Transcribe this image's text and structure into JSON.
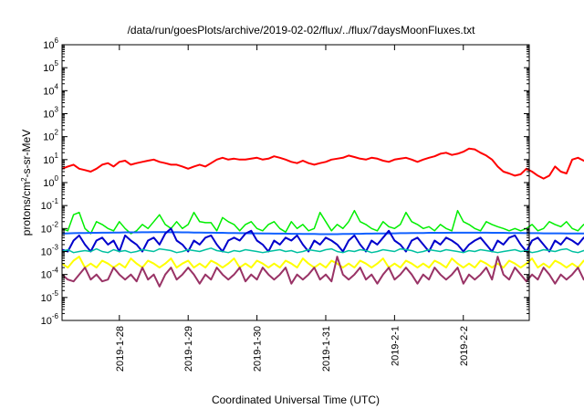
{
  "chart_data": {
    "type": "line",
    "title": "/data/run/goesPlots/archive/2019-02-02/flux/../flux/7daysMoonFluxes.txt",
    "xlabel": "Coordinated Universal Time (UTC)",
    "ylabel": "protons/cm²-s-sr-MeV",
    "yscale": "log",
    "ylim": [
      1e-06,
      1000000.0
    ],
    "y_ticks": [
      {
        "value": 1e-06,
        "base": "10",
        "exp": "-6"
      },
      {
        "value": 1e-05,
        "base": "10",
        "exp": "-5"
      },
      {
        "value": 0.0001,
        "base": "10",
        "exp": "-4"
      },
      {
        "value": 0.001,
        "base": "10",
        "exp": "-3"
      },
      {
        "value": 0.01,
        "base": "10",
        "exp": "-2"
      },
      {
        "value": 0.1,
        "base": "10",
        "exp": "-1"
      },
      {
        "value": 1,
        "base": "10",
        "exp": "0"
      },
      {
        "value": 10,
        "base": "10",
        "exp": "1"
      },
      {
        "value": 100,
        "base": "10",
        "exp": "2"
      },
      {
        "value": 1000,
        "base": "10",
        "exp": "3"
      },
      {
        "value": 10000,
        "base": "10",
        "exp": "4"
      },
      {
        "value": 100000,
        "base": "10",
        "exp": "5"
      },
      {
        "value": 1000000,
        "base": "10",
        "exp": "6"
      }
    ],
    "xlim": [
      "2019-01-27T04:00",
      "2019-02-02T23:00"
    ],
    "x_ticks": [
      {
        "label": "2019-1-28",
        "value": "2019-01-28T00:00"
      },
      {
        "label": "2019-1-29",
        "value": "2019-01-29T00:00"
      },
      {
        "label": "2019-1-30",
        "value": "2019-01-30T00:00"
      },
      {
        "label": "2019-1-31",
        "value": "2019-01-31T00:00"
      },
      {
        "label": "2019-2-1",
        "value": "2019-02-01T00:00"
      },
      {
        "label": "2019-2-2",
        "value": "2019-02-02T00:00"
      }
    ],
    "grid": false,
    "legend": "none",
    "x_interval_hours": 2,
    "series": [
      {
        "color": "#ff0000",
        "width": 2,
        "values": [
          4,
          5,
          6,
          4,
          3.5,
          3,
          4,
          6,
          7,
          5,
          8,
          9,
          6,
          7,
          8,
          9,
          10,
          8,
          7,
          6,
          6,
          5,
          4,
          5,
          6,
          5,
          7,
          10,
          12,
          10,
          11,
          10,
          10,
          11,
          12,
          10,
          11,
          14,
          12,
          10,
          8,
          7,
          9,
          7,
          6,
          7,
          8,
          10,
          11,
          12,
          15,
          13,
          11,
          10,
          12,
          11,
          9,
          8,
          10,
          11,
          12,
          10,
          8,
          10,
          12,
          14,
          18,
          20,
          16,
          18,
          22,
          30,
          28,
          20,
          15,
          10,
          5,
          3,
          2.5,
          2,
          2.3,
          4,
          3,
          2,
          1.5,
          2,
          5,
          3,
          2.5,
          10,
          12,
          9,
          8,
          11,
          12,
          8,
          6,
          4,
          1,
          0.6,
          0.8,
          0.45,
          0.6,
          0.8,
          1,
          1.5,
          3,
          10,
          12,
          14,
          15,
          20,
          22,
          11,
          8,
          5,
          3,
          2.5,
          2.5,
          2,
          1.5,
          1,
          1,
          0.9,
          1.5,
          1.5,
          2,
          10,
          8,
          20,
          14,
          10,
          8,
          7,
          6,
          5
        ]
      },
      {
        "color": "#00ee00",
        "width": 1.5,
        "values": [
          0.01,
          0.008,
          0.04,
          0.05,
          0.01,
          0.006,
          0.02,
          0.015,
          0.01,
          0.008,
          0.02,
          0.01,
          0.006,
          0.008,
          0.015,
          0.01,
          0.02,
          0.04,
          0.015,
          0.01,
          0.02,
          0.01,
          0.015,
          0.05,
          0.02,
          0.018,
          0.018,
          0.008,
          0.03,
          0.02,
          0.015,
          0.008,
          0.015,
          0.02,
          0.01,
          0.008,
          0.015,
          0.02,
          0.01,
          0.007,
          0.02,
          0.01,
          0.015,
          0.008,
          0.01,
          0.05,
          0.02,
          0.008,
          0.015,
          0.01,
          0.02,
          0.06,
          0.02,
          0.015,
          0.01,
          0.008,
          0.02,
          0.012,
          0.01,
          0.015,
          0.05,
          0.02,
          0.015,
          0.01,
          0.012,
          0.008,
          0.015,
          0.01,
          0.008,
          0.06,
          0.02,
          0.015,
          0.01,
          0.008,
          0.02,
          0.015,
          0.012,
          0.01,
          0.008,
          0.01,
          0.008,
          0.01,
          0.015,
          0.008,
          0.01,
          0.02,
          0.015,
          0.012,
          0.02,
          0.01,
          0.008,
          0.015,
          0.01,
          0.008,
          0.04,
          0.02,
          0.015,
          0.01,
          0.008,
          0.01,
          0.06,
          0.02,
          0.008,
          0.015,
          0.01,
          0.008,
          0.01,
          0.015,
          0.02,
          0.06,
          0.02,
          0.015,
          0.01,
          0.008,
          0.02,
          0.02,
          0.01,
          0.008,
          0.015,
          0.01,
          0.02,
          0.015,
          0.012,
          0.01,
          0.008,
          0.015,
          0.01,
          0.02,
          0.05,
          0.02,
          0.015,
          0.01,
          0.06,
          0.03,
          0.02,
          0.02
        ]
      },
      {
        "color": "#1060ff",
        "width": 2,
        "values": [
          0.006,
          0.0062,
          0.0063,
          0.0064,
          0.0064,
          0.0065,
          0.0065,
          0.0066,
          0.0066,
          0.0067,
          0.0067,
          0.0068,
          0.0068,
          0.0068,
          0.0069,
          0.0069,
          0.007,
          0.007,
          0.007,
          0.0069,
          0.0069,
          0.0068,
          0.0068,
          0.0067,
          0.0067,
          0.0066,
          0.0066,
          0.0065,
          0.0065,
          0.0064,
          0.0064,
          0.0063,
          0.0063,
          0.0062,
          0.0062,
          0.0061,
          0.0061,
          0.006,
          0.006,
          0.006,
          0.0059,
          0.0059,
          0.0058,
          0.0058,
          0.0058,
          0.0057,
          0.0057,
          0.0057,
          0.0057,
          0.0058,
          0.0058,
          0.0059,
          0.0059,
          0.006,
          0.006,
          0.0061,
          0.0061,
          0.0062,
          0.0062,
          0.0063,
          0.0063,
          0.0064,
          0.0064,
          0.0064,
          0.0065,
          0.0065,
          0.0065,
          0.0065,
          0.0066,
          0.0066,
          0.0066,
          0.0066,
          0.0066,
          0.0066,
          0.0066,
          0.0065,
          0.0065,
          0.0065,
          0.0064,
          0.0064,
          0.0064,
          0.0063,
          0.0063,
          0.0063,
          0.0062,
          0.0062,
          0.0062,
          0.0062,
          0.0061,
          0.0061,
          0.0061,
          0.0061,
          0.0061,
          0.0061,
          0.0061,
          0.0061,
          0.0061,
          0.0062,
          0.0062,
          0.0062,
          0.0063,
          0.0063,
          0.0063,
          0.0064,
          0.0064,
          0.0065,
          0.0065,
          0.0066,
          0.0066,
          0.0067,
          0.0067,
          0.0068,
          0.0068,
          0.0069,
          0.0069,
          0.007,
          0.007,
          0.007,
          0.007,
          0.007,
          0.0071,
          0.0071,
          0.0071,
          0.0071,
          0.0071,
          0.0071,
          0.0071,
          0.0071,
          0.0071,
          0.0071,
          0.0071,
          0.0071,
          0.0072,
          0.0072,
          0.0072,
          0.0072
        ]
      },
      {
        "color": "#0000cc",
        "width": 2,
        "values": [
          0.0012,
          0.001,
          0.003,
          0.005,
          0.002,
          0.001,
          0.003,
          0.004,
          0.002,
          0.003,
          0.001,
          0.005,
          0.003,
          0.002,
          0.001,
          0.003,
          0.004,
          0.002,
          0.006,
          0.01,
          0.003,
          0.002,
          0.001,
          0.003,
          0.002,
          0.004,
          0.005,
          0.002,
          0.001,
          0.003,
          0.004,
          0.003,
          0.006,
          0.008,
          0.003,
          0.002,
          0.001,
          0.003,
          0.002,
          0.004,
          0.003,
          0.005,
          0.002,
          0.001,
          0.003,
          0.002,
          0.004,
          0.003,
          0.002,
          0.001,
          0.003,
          0.005,
          0.002,
          0.001,
          0.003,
          0.002,
          0.004,
          0.008,
          0.003,
          0.002,
          0.001,
          0.003,
          0.004,
          0.002,
          0.001,
          0.003,
          0.002,
          0.004,
          0.003,
          0.002,
          0.001,
          0.002,
          0.003,
          0.004,
          0.002,
          0.001,
          0.003,
          0.002,
          0.004,
          0.005,
          0.002,
          0.001,
          0.003,
          0.004,
          0.002,
          0.001,
          0.003,
          0.002,
          0.004,
          0.003,
          0.002,
          0.004,
          0.003,
          0.002,
          0.001,
          0.003,
          0.004,
          0.002,
          0.001,
          0.003,
          0.002,
          0.004,
          0.005,
          0.003,
          0.002,
          0.002,
          0.001,
          0.003,
          0.004,
          0.002,
          0.001,
          0.002,
          0.003,
          0.004,
          0.002,
          0.001,
          0.001,
          0.001,
          0.001,
          0.0015,
          0.004,
          0.002,
          0.001,
          0.003,
          0.004,
          0.002,
          0.001,
          0.003,
          0.005,
          0.003,
          0.002,
          0.001,
          0.003,
          0.004,
          0.003,
          0.003
        ]
      },
      {
        "color": "#00c0a0",
        "width": 1.5,
        "values": [
          0.001,
          0.0012,
          0.0009,
          0.001,
          0.0011,
          0.001,
          0.0013,
          0.001,
          0.0009,
          0.0012,
          0.001,
          0.0011,
          0.0009,
          0.001,
          0.0012,
          0.0011,
          0.001,
          0.0013,
          0.0012,
          0.0011,
          0.0009,
          0.001,
          0.0012,
          0.0011,
          0.001,
          0.0012,
          0.0014,
          0.0011,
          0.001,
          0.0009,
          0.0011,
          0.001,
          0.0012,
          0.0011,
          0.001,
          0.0009,
          0.001,
          0.0011,
          0.0012,
          0.001,
          0.0011,
          0.0009,
          0.001,
          0.0012,
          0.0011,
          0.001,
          0.0012,
          0.0013,
          0.001,
          0.0009,
          0.0011,
          0.001,
          0.0012,
          0.0011,
          0.0009,
          0.001,
          0.0012,
          0.0011,
          0.001,
          0.0013,
          0.0012,
          0.0011,
          0.0009,
          0.001,
          0.0012,
          0.0011,
          0.001,
          0.0012,
          0.0011,
          0.001,
          0.0009,
          0.0011,
          0.001,
          0.0012,
          0.0011,
          0.001,
          0.0009,
          0.001,
          0.0011,
          0.0012,
          0.001,
          0.0011,
          0.0009,
          0.001,
          0.0012,
          0.0011,
          0.001,
          0.0012,
          0.0013,
          0.001,
          0.0009,
          0.0011,
          0.001,
          0.0012,
          0.0011,
          0.0009,
          0.001,
          0.0012,
          0.0011,
          0.001,
          0.0013,
          0.0012,
          0.0011,
          0.0009,
          0.001,
          0.0012,
          0.0011,
          0.001,
          0.0012,
          0.0011,
          0.001,
          0.0009,
          0.0011,
          0.001,
          0.0012,
          0.0011,
          0.001,
          0.0009,
          0.001,
          0.0011,
          0.0012,
          0.001,
          0.0011,
          0.0009,
          0.001,
          0.0012,
          0.0011,
          0.001,
          0.0012,
          0.0013,
          0.001,
          0.0009,
          0.0011,
          0.001,
          0.0012,
          0.0011
        ]
      },
      {
        "color": "#ffff00",
        "width": 2,
        "values": [
          0.0003,
          0.0002,
          0.0004,
          0.0006,
          0.0002,
          0.0003,
          0.0002,
          0.0004,
          0.0003,
          0.0002,
          0.0003,
          0.0002,
          0.0005,
          0.0003,
          0.0002,
          0.0004,
          0.0003,
          0.0002,
          0.0003,
          0.0005,
          0.0002,
          0.0003,
          0.0004,
          0.0002,
          0.0003,
          0.0002,
          0.0004,
          0.0003,
          0.0002,
          0.0003,
          0.0005,
          0.0002,
          0.0003,
          0.0002,
          0.0004,
          0.0003,
          0.0002,
          0.0003,
          0.0002,
          0.0004,
          0.0003,
          0.0002,
          0.0005,
          0.0003,
          0.0002,
          0.0003,
          0.0002,
          0.0004,
          0.0003,
          0.0002,
          0.0003,
          0.0002,
          0.0004,
          0.0003,
          0.0002,
          0.0003,
          0.0005,
          0.0002,
          0.0003,
          0.0002,
          0.0004,
          0.0003,
          0.0002,
          0.0003,
          0.0002,
          0.0004,
          0.0003,
          0.0002,
          0.0005,
          0.0003,
          0.0002,
          0.0003,
          0.0002,
          0.0004,
          0.0003,
          0.0002,
          0.0003,
          0.0002,
          0.0004,
          0.0003,
          0.0002,
          0.0003,
          0.0005,
          0.0002,
          0.0003,
          0.0002,
          0.0004,
          0.0003,
          0.0002,
          0.0003,
          0.0002,
          0.0004,
          0.0003,
          0.0002,
          0.0005,
          0.0003,
          0.0002,
          0.0003,
          0.0002,
          0.0004,
          0.0003,
          0.0002,
          0.0003,
          0.0002,
          0.0004,
          0.0003,
          0.0002,
          0.0003,
          0.0005,
          0.0002,
          0.0003,
          0.0002,
          0.0004,
          0.0003,
          0.0002,
          0.0003,
          0.0002,
          0.0004,
          0.0003,
          0.0002,
          0.0005,
          0.0003,
          0.0002,
          0.0003,
          0.0002,
          0.0004,
          0.0003,
          0.0002,
          0.0003,
          0.0002,
          0.0004,
          0.0003,
          0.0002,
          0.0006,
          0.0003,
          0.0003
        ]
      },
      {
        "color": "#993366",
        "width": 2,
        "values": [
          0.0001,
          6e-05,
          5e-05,
          0.0001,
          0.0002,
          6e-05,
          0.0001,
          5e-05,
          6e-05,
          0.0002,
          0.0001,
          6e-05,
          0.0001,
          5e-05,
          0.0002,
          6e-05,
          0.0001,
          3e-05,
          0.0001,
          0.0002,
          6e-05,
          0.0001,
          0.0002,
          0.0001,
          4e-05,
          0.0001,
          6e-05,
          0.0002,
          0.0001,
          6e-05,
          0.0001,
          0.0002,
          5e-05,
          0.0001,
          6e-05,
          0.0002,
          0.0001,
          6e-05,
          0.0001,
          0.0002,
          4e-05,
          0.0001,
          6e-05,
          0.0001,
          0.0002,
          6e-05,
          0.0001,
          5e-05,
          0.0006,
          0.0001,
          6e-05,
          0.0001,
          0.0002,
          6e-05,
          0.0001,
          4e-05,
          0.0001,
          0.0002,
          6e-05,
          0.0001,
          0.0002,
          0.0001,
          4e-05,
          0.0001,
          6e-05,
          0.0002,
          0.0001,
          6e-05,
          0.0001,
          0.0002,
          4e-05,
          0.0001,
          6e-05,
          0.0001,
          0.0002,
          6e-05,
          0.0006,
          0.0001,
          6e-05,
          0.0002,
          0.0001,
          5e-05,
          0.0001,
          6e-05,
          0.0002,
          0.0001,
          4e-05,
          0.0001,
          6e-05,
          0.0001,
          0.0002,
          6e-05,
          0.0001,
          5e-05,
          0.0001,
          0.0002,
          6e-05,
          0.0001,
          0.0002,
          0.0001,
          4e-05,
          0.0001,
          6e-05,
          0.0002,
          0.0001,
          6e-05,
          0.0001,
          0.0002,
          4e-05,
          0.0001,
          6e-05,
          0.0001,
          0.0002,
          6e-05,
          0.0001,
          5e-05,
          0.0001,
          0.0002,
          6e-05,
          0.0001,
          0.0002,
          0.0001,
          4e-05,
          0.0001,
          6e-05,
          0.0002,
          0.0001,
          6e-05,
          0.0001,
          0.0002,
          4e-05,
          0.0001,
          6e-05,
          0.0002,
          0.0001,
          0.0001
        ]
      }
    ]
  }
}
